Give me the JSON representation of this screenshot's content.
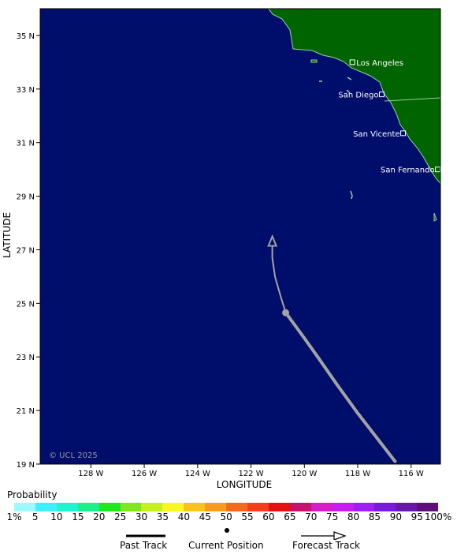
{
  "map": {
    "x_axis": {
      "title": "LONGITUDE",
      "ticks": [
        {
          "label": "128 W",
          "lon": -128
        },
        {
          "label": "126 W",
          "lon": -126
        },
        {
          "label": "124 W",
          "lon": -124
        },
        {
          "label": "122 W",
          "lon": -122
        },
        {
          "label": "120 W",
          "lon": -120
        },
        {
          "label": "118 W",
          "lon": -118
        },
        {
          "label": "116 W",
          "lon": -116
        }
      ]
    },
    "y_axis": {
      "title": "LATITUDE",
      "ticks": [
        {
          "label": "35 N",
          "lat": 35
        },
        {
          "label": "33 N",
          "lat": 33
        },
        {
          "label": "31 N",
          "lat": 31
        },
        {
          "label": "29 N",
          "lat": 29
        },
        {
          "label": "27 N",
          "lat": 27
        },
        {
          "label": "25 N",
          "lat": 25
        },
        {
          "label": "23 N",
          "lat": 23
        },
        {
          "label": "21 N",
          "lat": 21
        },
        {
          "label": "19 N",
          "lat": 19
        }
      ]
    },
    "extent": {
      "lon_min": -129.9,
      "lon_max": -114.9,
      "lat_min": 19,
      "lat_max": 36
    },
    "cities": [
      {
        "name": "Los Angeles",
        "lon": -118.2,
        "lat": 34.0
      },
      {
        "name": "San Diego",
        "lon": -117.1,
        "lat": 32.8
      },
      {
        "name": "San Vicente",
        "lon": -116.3,
        "lat": 31.35
      },
      {
        "name": "San Fernando",
        "lon": -115.0,
        "lat": 30.0
      }
    ],
    "copyright": "© UCL 2025",
    "colors": {
      "ocean": "#000e6b",
      "land": "#006400",
      "track": "#a3a3a3",
      "coast": "#9ccf9c"
    },
    "track": {
      "past": [
        {
          "lon": -116.6,
          "lat": 19.1
        },
        {
          "lon": -118.0,
          "lat": 20.9
        },
        {
          "lon": -118.8,
          "lat": 22.0
        },
        {
          "lon": -119.5,
          "lat": 23.0
        },
        {
          "lon": -120.0,
          "lat": 23.7
        },
        {
          "lon": -120.7,
          "lat": 24.65
        }
      ],
      "current": {
        "lon": -120.7,
        "lat": 24.65
      },
      "forecast": [
        {
          "lon": -120.7,
          "lat": 24.65
        },
        {
          "lon": -120.9,
          "lat": 25.3
        },
        {
          "lon": -121.1,
          "lat": 26.0
        },
        {
          "lon": -121.2,
          "lat": 26.7
        },
        {
          "lon": -121.2,
          "lat": 27.5
        }
      ]
    }
  },
  "probability": {
    "title": "Probability",
    "labels": [
      "1%",
      "5",
      "10",
      "15",
      "20",
      "25",
      "30",
      "35",
      "40",
      "45",
      "50",
      "55",
      "60",
      "65",
      "70",
      "75",
      "80",
      "85",
      "90",
      "95",
      "100%"
    ],
    "colors": [
      "#9ffaff",
      "#3ef0ff",
      "#1cf5d0",
      "#19f08a",
      "#1ce81c",
      "#7ee81c",
      "#c4f01c",
      "#f8f81c",
      "#f8c41c",
      "#f89a1c",
      "#f8681c",
      "#f83c1c",
      "#e81010",
      "#c8106e",
      "#d81cc8",
      "#c81cf0",
      "#a01cf8",
      "#7818e0",
      "#6818a8",
      "#600e78"
    ]
  },
  "legend": {
    "past_track": "Past Track",
    "current_position": "Current Position",
    "forecast_track": "Forecast Track"
  }
}
